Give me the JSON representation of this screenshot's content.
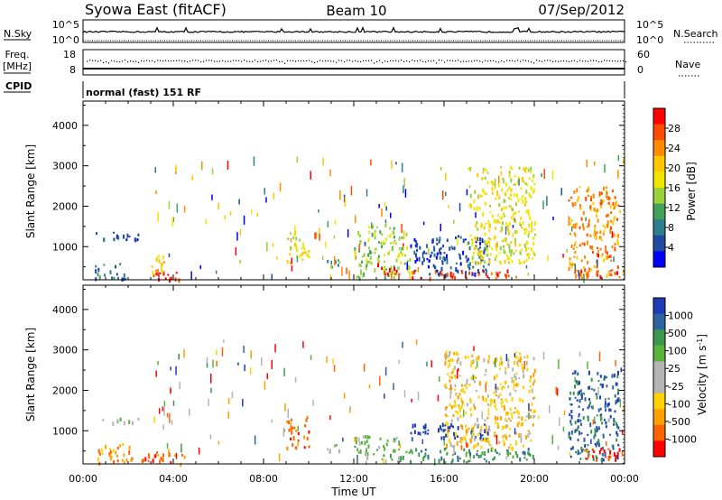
{
  "header": {
    "station": "Syowa East (fitACF)",
    "beam": "Beam 10",
    "date": "07/Sep/2012"
  },
  "top_panels": {
    "nsky_label": "N.Sky",
    "nsky_ticks": [
      "10^5",
      "10^0"
    ],
    "nsearch_label": "N.Search",
    "nsearch_ticks": [
      "10^5",
      "10^0"
    ],
    "freq_label_line1": "Freq.",
    "freq_label_line2": "[MHz]",
    "freq_ticks": [
      "18",
      "8"
    ],
    "nave_label": "Nave",
    "nave_ticks": [
      "60",
      "0"
    ],
    "cpid_label": "CPID",
    "cpid_text": "normal (fast) 151 RF"
  },
  "chart_data": [
    {
      "type": "heatmap",
      "name": "power",
      "ylabel": "Slant Range [km]",
      "xlabel": "",
      "y_ticks": [
        "4000",
        "3000",
        "2000",
        "1000"
      ],
      "y_tick_values": [
        4000,
        3000,
        2000,
        1000
      ],
      "ylim": [
        180,
        4600
      ],
      "x_ticks": [
        "00:00",
        "04:00",
        "08:00",
        "12:00",
        "16:00",
        "20:00",
        "00:00"
      ],
      "colorbar": {
        "label": "Power [dB]",
        "ticks": [
          "28",
          "24",
          "20",
          "16",
          "12",
          "8",
          "4"
        ],
        "colors": [
          "#ff0000",
          "#ff4b00",
          "#ff8c00",
          "#ffc800",
          "#f0e600",
          "#9bd23c",
          "#41a05a",
          "#2d7d8c",
          "#1e4ba0",
          "#0000ff"
        ]
      },
      "echo_regions": [
        {
          "t": [
            0.5,
            2.5
          ],
          "r": [
            1200,
            1400
          ],
          "c": 8
        },
        {
          "t": [
            0.5,
            2.0
          ],
          "r": [
            200,
            600
          ],
          "c": 7
        },
        {
          "t": [
            2.7,
            4.3
          ],
          "r": [
            200,
            450
          ],
          "c": 0
        },
        {
          "t": [
            3.0,
            3.8
          ],
          "r": [
            400,
            800
          ],
          "c": 3
        },
        {
          "t": [
            9.0,
            10.0
          ],
          "r": [
            600,
            1400
          ],
          "c": 4
        },
        {
          "t": [
            10.8,
            11.5
          ],
          "r": [
            500,
            700
          ],
          "c": 6
        },
        {
          "t": [
            12.0,
            14.5
          ],
          "r": [
            250,
            1600
          ],
          "c": 5
        },
        {
          "t": [
            13.0,
            14.0
          ],
          "r": [
            300,
            600
          ],
          "c": 0
        },
        {
          "t": [
            14.5,
            19.5
          ],
          "r": [
            250,
            450
          ],
          "c": 1
        },
        {
          "t": [
            14.5,
            18.0
          ],
          "r": [
            300,
            1300
          ],
          "c": 8
        },
        {
          "t": [
            17.0,
            20.0
          ],
          "r": [
            600,
            3000
          ],
          "c": 4
        },
        {
          "t": [
            21.5,
            23.7
          ],
          "r": [
            300,
            2500
          ],
          "c": 2
        },
        {
          "t": [
            22.0,
            24.0
          ],
          "r": [
            250,
            450
          ],
          "c": 1
        }
      ]
    },
    {
      "type": "heatmap",
      "name": "velocity",
      "ylabel": "Slant Range [km]",
      "xlabel": "Time UT",
      "y_ticks": [
        "4000",
        "3000",
        "2000",
        "1000"
      ],
      "y_tick_values": [
        4000,
        3000,
        2000,
        1000
      ],
      "ylim": [
        180,
        4600
      ],
      "x_ticks": [
        "00:00",
        "04:00",
        "08:00",
        "12:00",
        "16:00",
        "20:00",
        "00:00"
      ],
      "colorbar": {
        "label": "Velocity [m s",
        "label_sup": "-1",
        "label_end": "]",
        "ticks": [
          "1000",
          "500",
          "100",
          "25",
          "-25",
          "-100",
          "-500",
          "-1000"
        ],
        "colors": [
          "#1e3cb4",
          "#2d64a0",
          "#3c9650",
          "#5ab43c",
          "#b4b4b4",
          "#b4b4b4",
          "#ffd200",
          "#ffa000",
          "#ff6400",
          "#ff0000"
        ]
      },
      "echo_regions": [
        {
          "t": [
            0.8,
            2.5
          ],
          "r": [
            1200,
            1350
          ],
          "c": 4
        },
        {
          "t": [
            0.6,
            2.2
          ],
          "r": [
            200,
            700
          ],
          "c": 7
        },
        {
          "t": [
            2.5,
            4.5
          ],
          "r": [
            200,
            500
          ],
          "c": 8
        },
        {
          "t": [
            9.0,
            10.0
          ],
          "r": [
            600,
            1400
          ],
          "c": 8
        },
        {
          "t": [
            10.8,
            11.5
          ],
          "r": [
            500,
            700
          ],
          "c": 4
        },
        {
          "t": [
            12.0,
            14.0
          ],
          "r": [
            250,
            900
          ],
          "c": 3
        },
        {
          "t": [
            14.0,
            20.0
          ],
          "r": [
            250,
            600
          ],
          "c": 2
        },
        {
          "t": [
            14.5,
            18.0
          ],
          "r": [
            800,
            1200
          ],
          "c": 0
        },
        {
          "t": [
            16.0,
            20.0
          ],
          "r": [
            600,
            3000
          ],
          "c": 6
        },
        {
          "t": [
            21.5,
            23.7
          ],
          "r": [
            300,
            2500
          ],
          "c": 1
        },
        {
          "t": [
            22.0,
            24.0
          ],
          "r": [
            300,
            600
          ],
          "c": 9
        }
      ]
    }
  ]
}
